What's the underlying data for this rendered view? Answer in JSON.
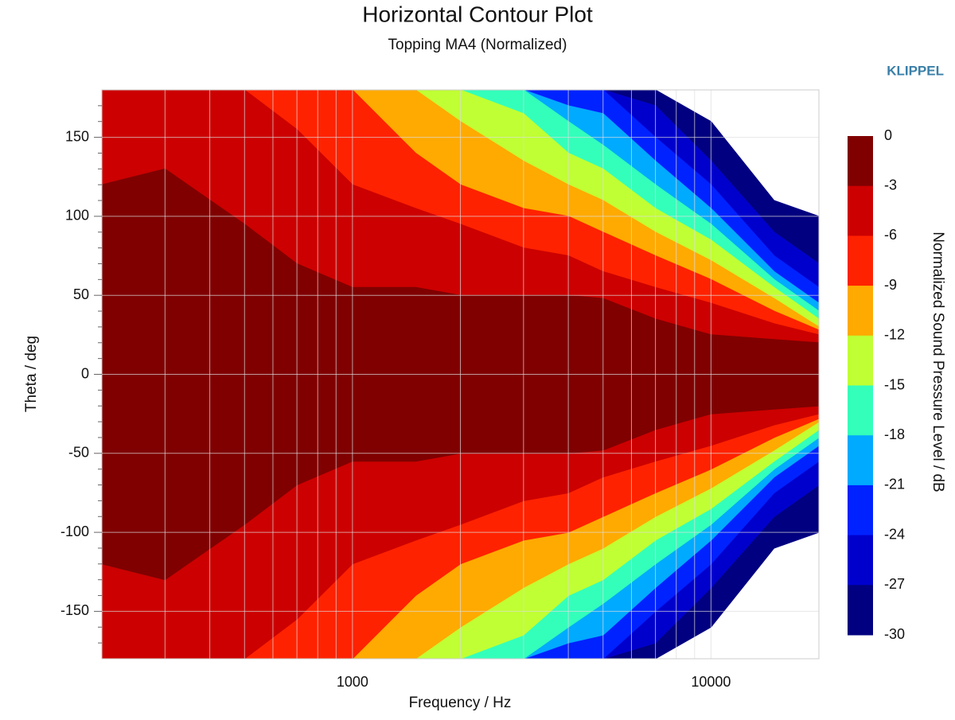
{
  "chart_data": {
    "type": "contour",
    "title": "Horizontal Contour Plot",
    "subtitle": "Topping MA4 (Normalized)",
    "brand": "KLIPPEL",
    "x_label": "Frequency / Hz",
    "y_label": "Theta / deg",
    "log_x": true,
    "grid": true,
    "xlim": [
      200,
      20000
    ],
    "xticks": [
      1000,
      10000
    ],
    "xminorticks": [
      300,
      400,
      500,
      600,
      700,
      800,
      900,
      2000,
      3000,
      4000,
      5000,
      6000,
      7000,
      8000,
      9000,
      20000
    ],
    "ylim": [
      -180,
      180
    ],
    "yticks": [
      -150,
      -100,
      -50,
      0,
      50,
      100,
      150
    ],
    "yminorticks": [
      -170,
      -160,
      -140,
      -130,
      -120,
      -110,
      -90,
      -80,
      -70,
      -60,
      -40,
      -30,
      -20,
      -10,
      10,
      20,
      30,
      40,
      60,
      70,
      80,
      90,
      110,
      120,
      130,
      140,
      160,
      170
    ],
    "x": [
      200,
      300,
      500,
      700,
      1000,
      1500,
      2000,
      3000,
      4000,
      5000,
      7000,
      10000,
      15000,
      20000
    ],
    "contours": [
      {
        "level": -30,
        "color": "#000080",
        "theta": [
          180,
          180,
          180,
          180,
          180,
          180,
          180,
          180,
          180,
          180,
          180,
          160,
          110,
          100
        ]
      },
      {
        "level": -27,
        "color": "#0000cd",
        "theta": [
          180,
          180,
          180,
          180,
          180,
          180,
          180,
          180,
          180,
          180,
          170,
          135,
          90,
          70
        ]
      },
      {
        "level": -24,
        "color": "#0022ff",
        "theta": [
          180,
          180,
          180,
          180,
          180,
          180,
          180,
          180,
          180,
          180,
          150,
          120,
          75,
          55
        ]
      },
      {
        "level": -21,
        "color": "#00aaff",
        "theta": [
          180,
          180,
          180,
          180,
          180,
          180,
          180,
          180,
          170,
          165,
          135,
          105,
          65,
          45
        ]
      },
      {
        "level": -18,
        "color": "#33ffbb",
        "theta": [
          180,
          180,
          180,
          180,
          180,
          180,
          180,
          180,
          160,
          145,
          120,
          95,
          60,
          40
        ]
      },
      {
        "level": -15,
        "color": "#c0ff33",
        "theta": [
          180,
          180,
          180,
          180,
          180,
          180,
          180,
          165,
          140,
          130,
          105,
          85,
          55,
          35
        ]
      },
      {
        "level": -12,
        "color": "#ffaa00",
        "theta": [
          180,
          180,
          180,
          180,
          180,
          180,
          160,
          135,
          120,
          110,
          90,
          72,
          48,
          30
        ]
      },
      {
        "level": -9,
        "color": "#ff2200",
        "theta": [
          180,
          180,
          180,
          180,
          180,
          140,
          120,
          105,
          100,
          90,
          75,
          60,
          40,
          28
        ]
      },
      {
        "level": -6,
        "color": "#cc0000",
        "theta": [
          180,
          180,
          180,
          155,
          120,
          105,
          95,
          80,
          75,
          65,
          55,
          45,
          32,
          25
        ]
      },
      {
        "level": -3,
        "color": "#800000",
        "theta": [
          120,
          130,
          95,
          70,
          55,
          55,
          50,
          50,
          50,
          48,
          35,
          25,
          22,
          20
        ]
      }
    ],
    "colorbar": {
      "label": "Normalized Sound Pressure Level / dB",
      "ticks": [
        0,
        -3,
        -6,
        -9,
        -12,
        -15,
        -18,
        -21,
        -24,
        -27,
        -30
      ],
      "colors": [
        "#800000",
        "#cc0000",
        "#ff2200",
        "#ffaa00",
        "#c0ff33",
        "#33ffbb",
        "#00aaff",
        "#0022ff",
        "#0000cd",
        "#000080"
      ]
    }
  }
}
